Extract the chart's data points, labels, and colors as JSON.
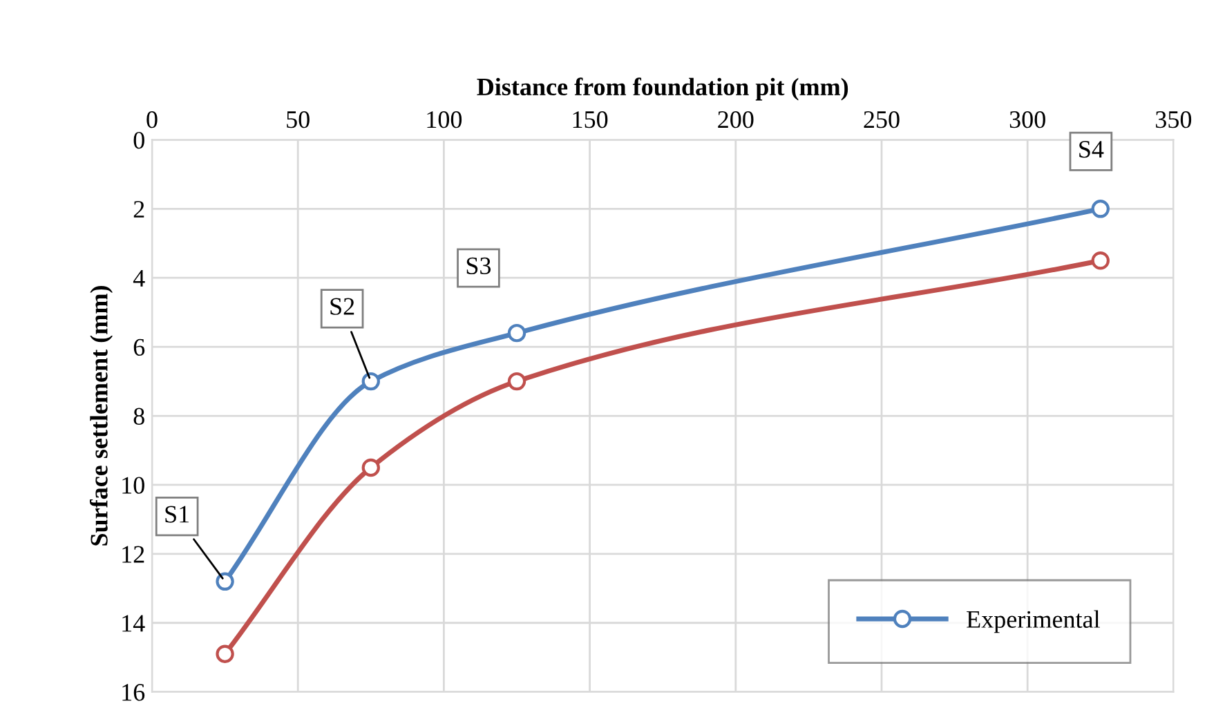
{
  "chart_data": {
    "type": "line",
    "xlabel": "Distance from foundation pit (mm)",
    "ylabel": "Surface settlement (mm)",
    "xlim": [
      0,
      350
    ],
    "xticks": [
      0,
      50,
      100,
      150,
      200,
      250,
      300,
      350
    ],
    "ylim": [
      16,
      0
    ],
    "yticks": [
      0,
      2,
      4,
      6,
      8,
      10,
      12,
      14,
      16
    ],
    "grid": true,
    "legend": "bottom right",
    "marker": "circle",
    "line_style": "solid",
    "series": [
      {
        "name": "Experimental",
        "color": "#4f81bd",
        "x": [
          25,
          75,
          125,
          325
        ],
        "values": [
          12.8,
          7.0,
          5.6,
          2.0
        ]
      },
      {
        "color": "#c0504d",
        "x": [
          25,
          75,
          125,
          325
        ],
        "values": [
          14.9,
          9.5,
          7.0,
          3.5
        ]
      }
    ],
    "annotations": [
      {
        "text": "S1",
        "x": 25,
        "y": 12.8
      },
      {
        "text": "S2",
        "x": 75,
        "y": 7.0
      },
      {
        "text": "S3",
        "x": 125,
        "y": 5.6
      },
      {
        "text": "S4",
        "x": 325,
        "y": 2.0
      }
    ]
  }
}
